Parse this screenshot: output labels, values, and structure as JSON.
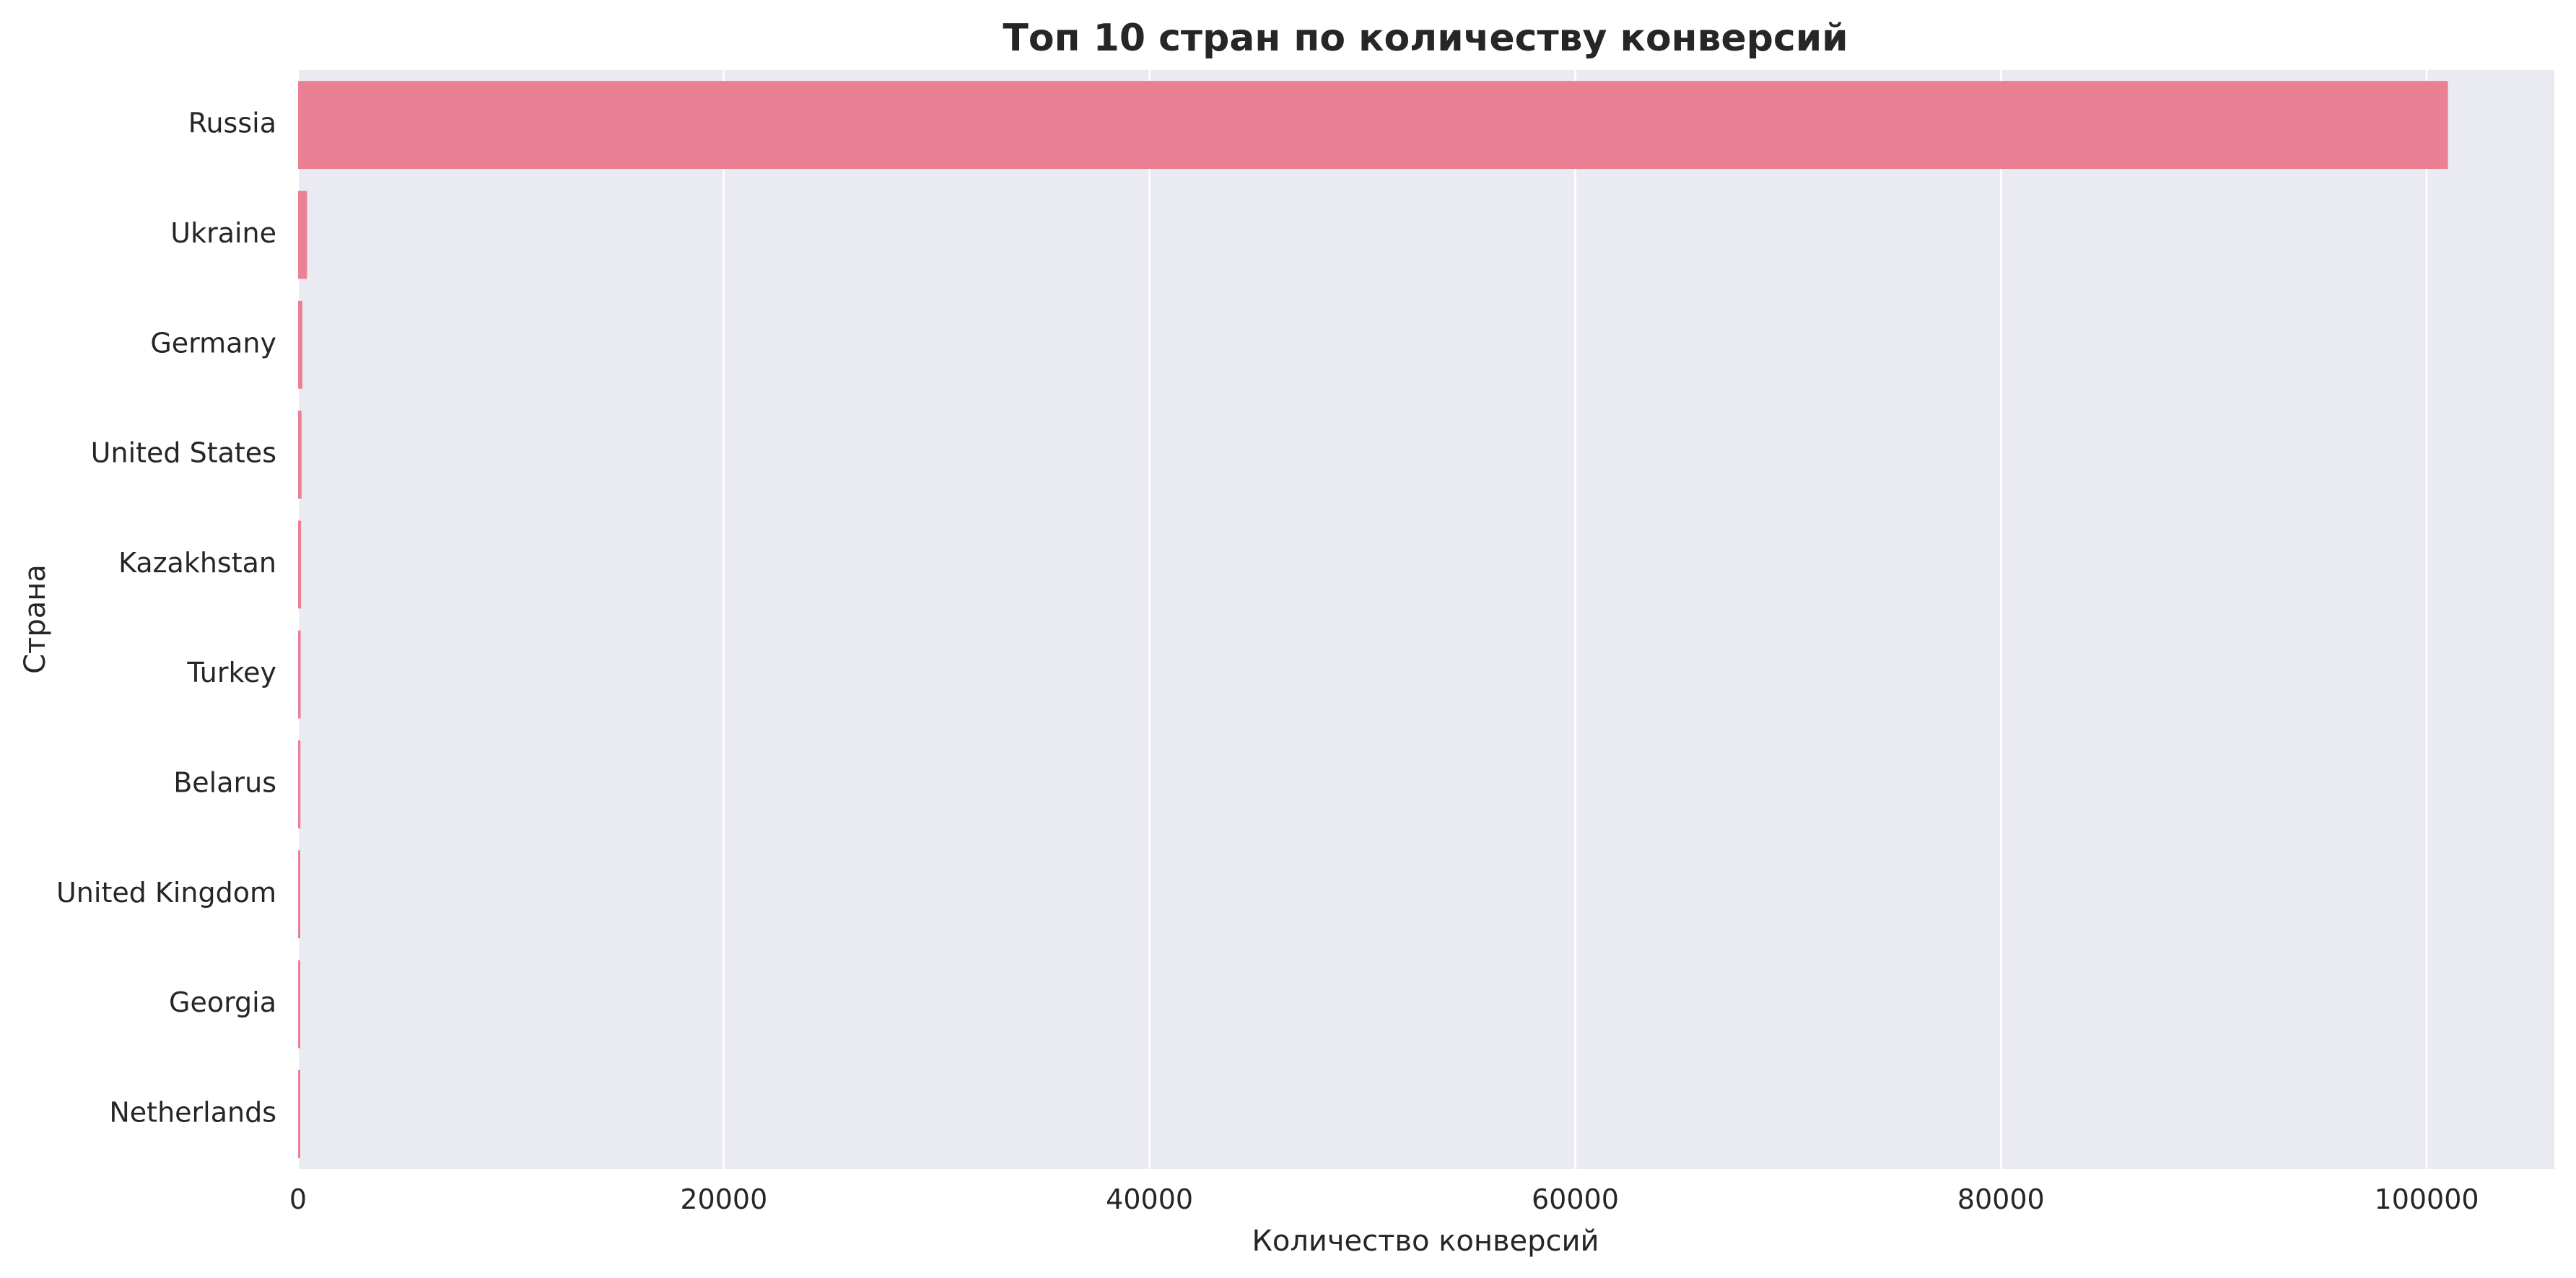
{
  "chart_data": {
    "type": "bar",
    "orientation": "horizontal",
    "title": "Топ 10 стран по количеству конверсий",
    "xlabel": "Количество конверсий",
    "ylabel": "Страна",
    "categories": [
      "Russia",
      "Ukraine",
      "Germany",
      "United States",
      "Kazakhstan",
      "Turkey",
      "Belarus",
      "United Kingdom",
      "Georgia",
      "Netherlands"
    ],
    "values": [
      101000,
      420,
      200,
      160,
      140,
      120,
      110,
      100,
      90,
      80
    ],
    "xlim": [
      0,
      106000
    ],
    "xticks": [
      0,
      20000,
      40000,
      60000,
      80000,
      100000
    ],
    "xtick_labels": [
      "0",
      "20000",
      "40000",
      "60000",
      "80000",
      "100000"
    ],
    "grid": true,
    "colors": {
      "bar": "#ea8093",
      "plot_background": "#eaeaf2",
      "grid": "#ffffff",
      "text": "#262626"
    }
  }
}
